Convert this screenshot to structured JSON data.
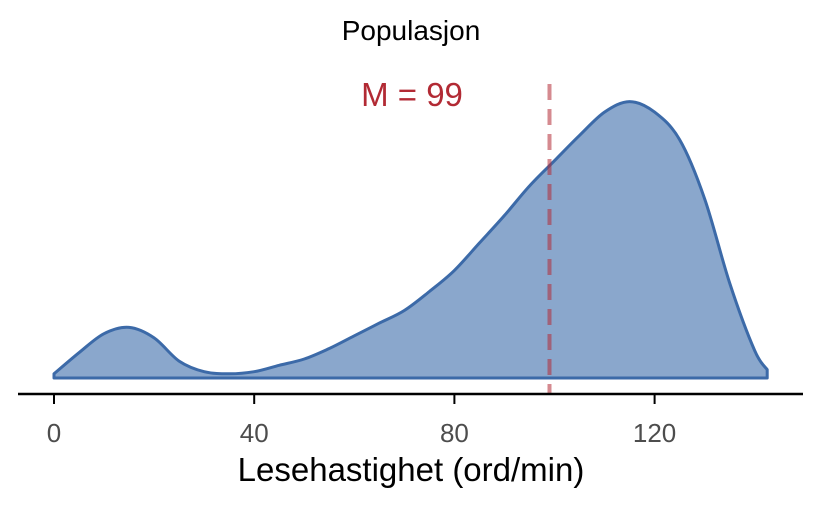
{
  "chart_data": {
    "type": "area",
    "title": "Populasjon",
    "xlabel": "Lesehastighet (ord/min)",
    "ylabel": "",
    "xlim": [
      -7,
      150
    ],
    "xticks": [
      0,
      40,
      80,
      120
    ],
    "xtick_labels": [
      "0",
      "40",
      "80",
      "120"
    ],
    "y_axis_visible": false,
    "grid": false,
    "series": [
      {
        "color": "#3c6aa8",
        "fill": "#8aa7cc",
        "x": [
          0,
          5,
          10,
          15,
          20,
          25,
          30,
          35,
          40,
          45,
          50,
          55,
          60,
          65,
          70,
          75,
          80,
          85,
          90,
          95,
          100,
          105,
          110,
          115,
          120,
          125,
          130,
          135,
          140,
          142.5
        ],
        "density": [
          0.02,
          0.12,
          0.21,
          0.24,
          0.19,
          0.08,
          0.03,
          0.02,
          0.03,
          0.06,
          0.09,
          0.14,
          0.2,
          0.26,
          0.32,
          0.41,
          0.51,
          0.64,
          0.77,
          0.91,
          1.03,
          1.15,
          1.26,
          1.31,
          1.26,
          1.13,
          0.85,
          0.45,
          0.13,
          0.04
        ]
      }
    ],
    "reference_line": {
      "x": 99,
      "style": "dashed",
      "color": "#b22a34"
    },
    "annotation": {
      "text": "M = 99",
      "color": "#b22a34"
    }
  }
}
